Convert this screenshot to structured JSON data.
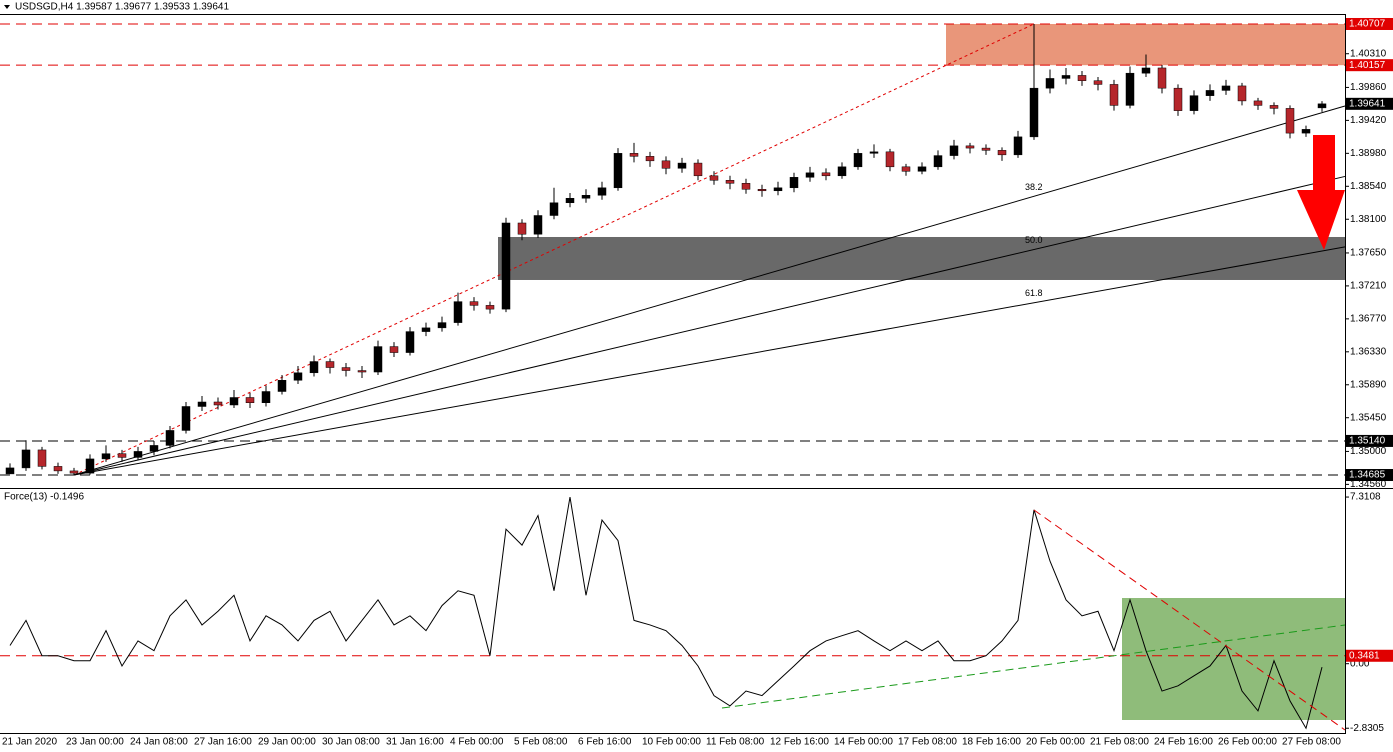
{
  "chart_data": [
    {
      "type": "candlestick",
      "title": "USDSGD,H4  1.39587 1.39677 1.39533 1.39641",
      "x_labels": [
        "21 Jan 2020",
        "23 Jan 00:00",
        "24 Jan 08:00",
        "27 Jan 16:00",
        "29 Jan 00:00",
        "30 Jan 08:00",
        "31 Jan 16:00",
        "4 Feb 00:00",
        "5 Feb 08:00",
        "6 Feb 16:00",
        "10 Feb 00:00",
        "11 Feb 08:00",
        "12 Feb 16:00",
        "14 Feb 00:00",
        "17 Feb 08:00",
        "18 Feb 16:00",
        "20 Feb 00:00",
        "21 Feb 08:00",
        "24 Feb 16:00",
        "26 Feb 00:00",
        "27 Feb 08:00"
      ],
      "open": [
        1.347,
        1.3478,
        1.3502,
        1.348,
        1.3474,
        1.3471,
        1.349,
        1.3497,
        1.3492,
        1.35,
        1.3508,
        1.3528,
        1.356,
        1.3566,
        1.3562,
        1.3572,
        1.3565,
        1.358,
        1.3595,
        1.3605,
        1.362,
        1.3612,
        1.3608,
        1.3606,
        1.364,
        1.3632,
        1.366,
        1.3665,
        1.3672,
        1.37,
        1.3695,
        1.369,
        1.3805,
        1.379,
        1.3815,
        1.3832,
        1.3838,
        1.3842,
        1.3852,
        1.3898,
        1.3894,
        1.3888,
        1.3878,
        1.3885,
        1.3868,
        1.3862,
        1.3858,
        1.385,
        1.3848,
        1.3852,
        1.3866,
        1.3872,
        1.3868,
        1.388,
        1.3898,
        1.39,
        1.388,
        1.3874,
        1.388,
        1.3895,
        1.3908,
        1.3905,
        1.3902,
        1.3896,
        1.392,
        1.3985,
        1.3998,
        1.4002,
        1.3995,
        1.399,
        1.3962,
        1.4005,
        1.4012,
        1.3985,
        1.3955,
        1.3975,
        1.3982,
        1.3988,
        1.3968,
        1.3962,
        1.3958,
        1.3925,
        1.39587
      ],
      "high": [
        1.3484,
        1.3515,
        1.3506,
        1.3485,
        1.3478,
        1.3496,
        1.3508,
        1.3502,
        1.3506,
        1.3514,
        1.3534,
        1.3566,
        1.3574,
        1.3572,
        1.3582,
        1.3578,
        1.3588,
        1.3602,
        1.3614,
        1.3628,
        1.3624,
        1.3618,
        1.3614,
        1.3648,
        1.3646,
        1.3666,
        1.3672,
        1.368,
        1.3712,
        1.3706,
        1.37,
        1.3812,
        1.381,
        1.3822,
        1.3852,
        1.3845,
        1.385,
        1.386,
        1.3905,
        1.3912,
        1.39,
        1.3894,
        1.3892,
        1.389,
        1.3874,
        1.3868,
        1.3864,
        1.3856,
        1.386,
        1.3872,
        1.388,
        1.3878,
        1.3886,
        1.3904,
        1.391,
        1.3904,
        1.3884,
        1.3886,
        1.3902,
        1.3916,
        1.3912,
        1.391,
        1.3906,
        1.3928,
        1.40707,
        1.401,
        1.4012,
        1.4008,
        1.4,
        1.3996,
        1.4014,
        1.403,
        1.4016,
        1.399,
        1.3982,
        1.399,
        1.3996,
        1.3992,
        1.3972,
        1.3966,
        1.3962,
        1.3935,
        1.39677
      ],
      "low": [
        1.347,
        1.3474,
        1.3476,
        1.347,
        1.34685,
        1.3469,
        1.3486,
        1.3486,
        1.3488,
        1.3495,
        1.3504,
        1.3524,
        1.3554,
        1.3556,
        1.3558,
        1.3558,
        1.356,
        1.3576,
        1.359,
        1.36,
        1.3604,
        1.36,
        1.3598,
        1.3602,
        1.3626,
        1.3628,
        1.3654,
        1.366,
        1.3668,
        1.3688,
        1.3684,
        1.3686,
        1.3782,
        1.3785,
        1.381,
        1.3826,
        1.3832,
        1.3836,
        1.3848,
        1.3886,
        1.388,
        1.387,
        1.3872,
        1.3862,
        1.3856,
        1.385,
        1.3844,
        1.384,
        1.3842,
        1.3846,
        1.386,
        1.3862,
        1.3864,
        1.3876,
        1.3892,
        1.3874,
        1.3868,
        1.387,
        1.3876,
        1.389,
        1.3898,
        1.3896,
        1.3888,
        1.3892,
        1.3916,
        1.3978,
        1.399,
        1.3988,
        1.3982,
        1.3955,
        1.3958,
        1.4,
        1.3978,
        1.3948,
        1.395,
        1.3968,
        1.3976,
        1.3962,
        1.3956,
        1.395,
        1.3918,
        1.392,
        1.39533
      ],
      "close": [
        1.3478,
        1.3502,
        1.348,
        1.3474,
        1.3471,
        1.349,
        1.3497,
        1.3492,
        1.35,
        1.3508,
        1.3528,
        1.356,
        1.3566,
        1.3562,
        1.3572,
        1.3565,
        1.358,
        1.3595,
        1.3605,
        1.362,
        1.3612,
        1.3608,
        1.3606,
        1.364,
        1.3632,
        1.366,
        1.3665,
        1.3672,
        1.37,
        1.3695,
        1.369,
        1.3805,
        1.379,
        1.3815,
        1.3832,
        1.3838,
        1.3842,
        1.3852,
        1.3898,
        1.3894,
        1.3888,
        1.3878,
        1.3885,
        1.3868,
        1.3862,
        1.3858,
        1.385,
        1.3848,
        1.3852,
        1.3866,
        1.3872,
        1.3868,
        1.388,
        1.3898,
        1.39,
        1.388,
        1.3874,
        1.388,
        1.3895,
        1.3908,
        1.3905,
        1.3902,
        1.3896,
        1.392,
        1.3985,
        1.3998,
        1.4002,
        1.3995,
        1.399,
        1.3962,
        1.4005,
        1.4012,
        1.3985,
        1.3955,
        1.3975,
        1.3982,
        1.3988,
        1.3968,
        1.3962,
        1.3958,
        1.3925,
        1.393,
        1.39641
      ],
      "up_color": "#000000",
      "down_color": "#b5262b",
      "ylim": [
        1.34525,
        1.40827
      ],
      "yticks": [
        {
          "value": 1.4031,
          "label": "1.40310"
        },
        {
          "value": 1.3986,
          "label": "1.39860"
        },
        {
          "value": 1.3942,
          "label": "1.39420"
        },
        {
          "value": 1.3898,
          "label": "1.38980"
        },
        {
          "value": 1.3854,
          "label": "1.38540"
        },
        {
          "value": 1.381,
          "label": "1.38100"
        },
        {
          "value": 1.3765,
          "label": "1.37650"
        },
        {
          "value": 1.3721,
          "label": "1.37210"
        },
        {
          "value": 1.3677,
          "label": "1.36770"
        },
        {
          "value": 1.3633,
          "label": "1.36330"
        },
        {
          "value": 1.3589,
          "label": "1.35890"
        },
        {
          "value": 1.3545,
          "label": "1.35450"
        },
        {
          "value": 1.35,
          "label": "1.35000"
        },
        {
          "value": 1.3456,
          "label": "1.34560"
        }
      ],
      "levels": [
        {
          "value": 1.40707,
          "color": "#e00000"
        },
        {
          "value": 1.40157,
          "color": "#e00000"
        },
        {
          "value": 1.3514,
          "label": "1.35140",
          "color": "#000000"
        },
        {
          "value": 1.34685,
          "color": "#000000"
        }
      ],
      "zones": [
        {
          "from": 1.40157,
          "to": 1.40707,
          "color": "#e9967a"
        },
        {
          "from": 1.37289,
          "to": 1.37863,
          "color": "#696969"
        }
      ],
      "fib_fan": [
        38.2,
        {
          "value": 50,
          "label": "50.0"
        },
        61.8
      ]
    },
    {
      "type": "line",
      "title": "Force(13) -0.1496",
      "color": "#000000",
      "values": [
        0.8,
        1.9,
        0.35,
        0.35,
        0.13,
        0.13,
        1.45,
        -0.1,
        1.0,
        0.57,
        2.1,
        2.8,
        1.7,
        2.3,
        3.0,
        1.0,
        2.1,
        1.7,
        1.0,
        1.9,
        2.3,
        1.0,
        1.9,
        2.8,
        1.7,
        2.1,
        1.45,
        2.55,
        3.2,
        3.0,
        0.35,
        5.9,
        5.2,
        6.5,
        3.2,
        7.3108,
        3.0,
        6.3,
        5.4,
        1.9,
        1.7,
        1.45,
        0.8,
        -0.1,
        -1.4,
        -1.85,
        -1.2,
        -1.4,
        -0.75,
        -0.1,
        0.57,
        1.0,
        1.23,
        1.45,
        1.0,
        0.57,
        1.0,
        0.57,
        1.0,
        0.13,
        0.13,
        0.35,
        1.0,
        1.9,
        6.75,
        4.5,
        2.8,
        2.1,
        2.3,
        0.57,
        2.8,
        0.57,
        -1.2,
        -0.97,
        -0.53,
        -0.1,
        0.8,
        -1.2,
        -2.07,
        0.13,
        -1.63,
        -2.8305,
        -0.1496
      ],
      "ylim": [
        -3.04,
        7.62
      ],
      "yticks": [
        7.3108,
        {
          "value": 0,
          "label": "0.00"
        },
        -2.8305
      ],
      "level": {
        "value": 0.3481,
        "color": "#e00000"
      }
    }
  ]
}
